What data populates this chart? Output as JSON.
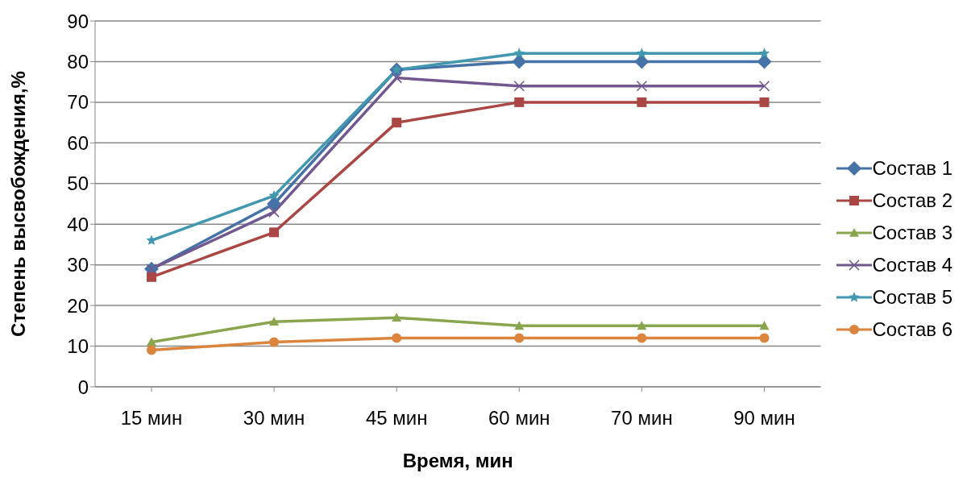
{
  "chart_data": {
    "type": "line",
    "xlabel": "Время, мин",
    "ylabel": "Степень высвобождения,%",
    "categories": [
      "15 мин",
      "30 мин",
      "45 мин",
      "60 мин",
      "70 мин",
      "90 мин"
    ],
    "ylim": [
      0,
      90
    ],
    "yticks": [
      0,
      10,
      20,
      30,
      40,
      50,
      60,
      70,
      80,
      90
    ],
    "grid": "y",
    "legend": "right",
    "series": [
      {
        "name": "Состав 1",
        "color": "#4572a7",
        "marker": "diamond",
        "values": [
          29,
          45,
          78,
          80,
          80,
          80
        ]
      },
      {
        "name": "Состав 2",
        "color": "#aa4643",
        "marker": "square",
        "values": [
          27,
          38,
          65,
          70,
          70,
          70
        ]
      },
      {
        "name": "Состав 3",
        "color": "#89a54e",
        "marker": "triangle",
        "values": [
          11,
          16,
          17,
          15,
          15,
          15
        ]
      },
      {
        "name": "Состав 4",
        "color": "#71588f",
        "marker": "cross",
        "values": [
          29,
          43,
          76,
          74,
          74,
          74
        ]
      },
      {
        "name": "Состав 5",
        "color": "#4198af",
        "marker": "star",
        "values": [
          36,
          47,
          78,
          82,
          82,
          82
        ]
      },
      {
        "name": "Состав 6",
        "color": "#db843d",
        "marker": "circle",
        "values": [
          9,
          11,
          12,
          12,
          12,
          12
        ]
      }
    ]
  }
}
